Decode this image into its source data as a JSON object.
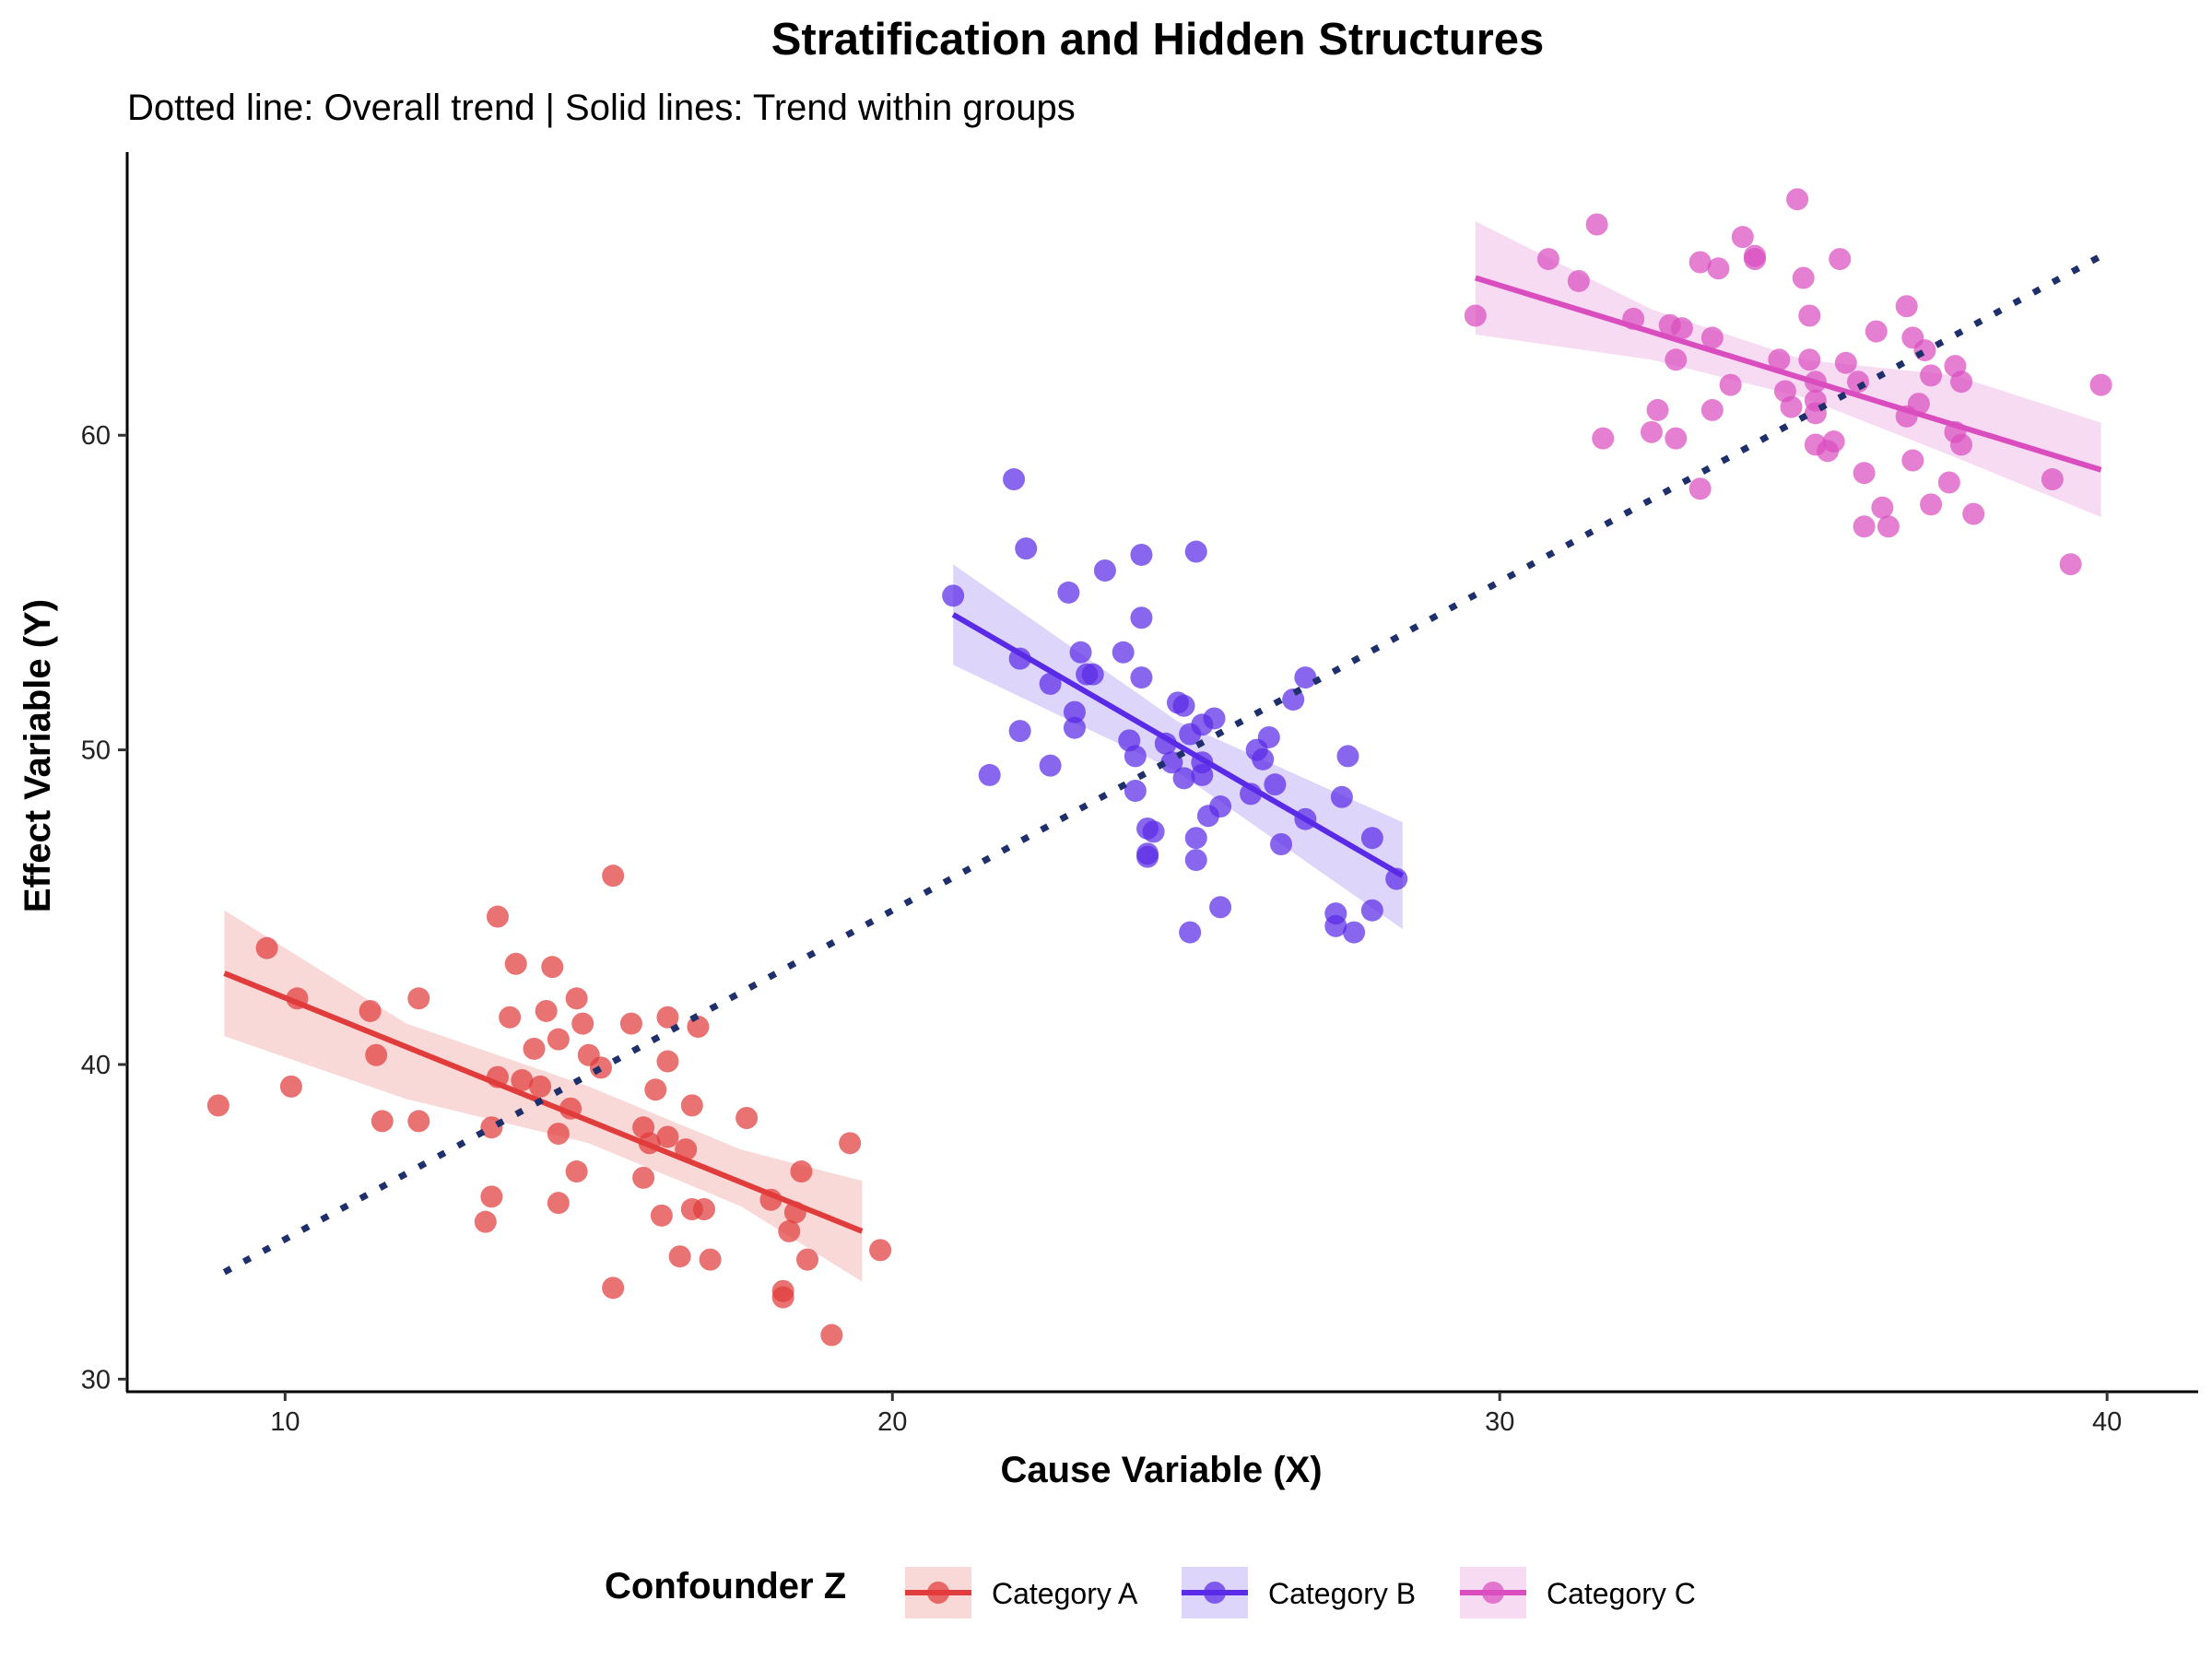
{
  "chart_data": {
    "type": "scatter",
    "title": "Stratification and Hidden Structures",
    "subtitle": "Dotted line: Overall trend | Solid lines: Trend within groups",
    "xlabel": "Cause Variable (X)",
    "ylabel": "Effect Variable (Y)",
    "xlim": [
      7.4,
      41.5
    ],
    "ylim": [
      29.6,
      69.0
    ],
    "xticks": [
      10,
      20,
      30,
      40
    ],
    "yticks": [
      30,
      40,
      50,
      60
    ],
    "grid": false,
    "legend": {
      "title": "Confounder Z",
      "position": "bottom",
      "entries": [
        "Category A",
        "Category B",
        "Category C"
      ]
    },
    "overall_trend": {
      "style": "dotted",
      "color": "#1F2F6B",
      "x": [
        9.0,
        40.0
      ],
      "y": [
        33.4,
        65.8
      ]
    },
    "series": [
      {
        "name": "Category A",
        "color": "#E03C3C",
        "fit": {
          "x": [
            9.0,
            19.5
          ],
          "y": [
            42.9,
            34.7
          ]
        },
        "band": {
          "x": [
            9.0,
            12.0,
            15.0,
            17.5,
            19.5
          ],
          "lower": [
            40.9,
            38.9,
            37.5,
            35.5,
            33.1
          ],
          "upper": [
            44.9,
            41.3,
            39.3,
            37.3,
            36.3
          ]
        },
        "points": [
          [
            8.9,
            38.7
          ],
          [
            9.7,
            43.7
          ],
          [
            10.1,
            39.3
          ],
          [
            10.2,
            42.1
          ],
          [
            11.4,
            41.7
          ],
          [
            11.5,
            40.3
          ],
          [
            11.6,
            38.2
          ],
          [
            12.2,
            42.1
          ],
          [
            12.2,
            38.2
          ],
          [
            13.3,
            35.0
          ],
          [
            13.4,
            38.0
          ],
          [
            13.5,
            39.6
          ],
          [
            13.4,
            35.8
          ],
          [
            13.5,
            44.7
          ],
          [
            13.7,
            41.5
          ],
          [
            13.8,
            43.2
          ],
          [
            13.9,
            39.5
          ],
          [
            14.1,
            40.5
          ],
          [
            14.2,
            39.3
          ],
          [
            14.3,
            41.7
          ],
          [
            14.4,
            43.1
          ],
          [
            14.5,
            40.8
          ],
          [
            14.5,
            35.6
          ],
          [
            14.5,
            37.8
          ],
          [
            14.7,
            38.6
          ],
          [
            14.8,
            36.6
          ],
          [
            14.8,
            42.1
          ],
          [
            14.9,
            41.3
          ],
          [
            15.0,
            40.3
          ],
          [
            15.2,
            39.9
          ],
          [
            15.4,
            32.9
          ],
          [
            15.4,
            46.0
          ],
          [
            15.7,
            41.3
          ],
          [
            15.9,
            36.4
          ],
          [
            15.9,
            38.0
          ],
          [
            16.0,
            37.5
          ],
          [
            16.1,
            39.2
          ],
          [
            16.2,
            35.2
          ],
          [
            16.3,
            37.7
          ],
          [
            16.3,
            41.5
          ],
          [
            16.3,
            40.1
          ],
          [
            16.5,
            33.9
          ],
          [
            16.6,
            37.3
          ],
          [
            16.7,
            35.4
          ],
          [
            16.7,
            38.7
          ],
          [
            16.8,
            41.2
          ],
          [
            16.9,
            35.4
          ],
          [
            17.0,
            33.8
          ],
          [
            17.6,
            38.3
          ],
          [
            18.0,
            35.7
          ],
          [
            18.2,
            32.8
          ],
          [
            18.2,
            32.6
          ],
          [
            18.3,
            34.7
          ],
          [
            18.5,
            36.6
          ],
          [
            18.6,
            33.8
          ],
          [
            18.4,
            35.3
          ],
          [
            19.0,
            31.4
          ],
          [
            19.3,
            37.5
          ],
          [
            19.8,
            34.1
          ]
        ]
      },
      {
        "name": "Category B",
        "color": "#5A2BE6",
        "fit": {
          "x": [
            21.0,
            28.4
          ],
          "y": [
            54.3,
            46.0
          ]
        },
        "band": {
          "x": [
            21.0,
            24.7,
            28.4
          ],
          "lower": [
            52.7,
            49.3,
            44.3
          ],
          "upper": [
            55.9,
            50.9,
            47.7
          ]
        },
        "points": [
          [
            21.0,
            54.9
          ],
          [
            21.6,
            49.2
          ],
          [
            22.0,
            58.6
          ],
          [
            22.1,
            52.9
          ],
          [
            22.1,
            50.6
          ],
          [
            22.2,
            56.4
          ],
          [
            22.6,
            49.5
          ],
          [
            22.6,
            52.1
          ],
          [
            22.9,
            55.0
          ],
          [
            23.0,
            50.7
          ],
          [
            23.0,
            51.2
          ],
          [
            23.1,
            53.1
          ],
          [
            23.2,
            52.4
          ],
          [
            23.3,
            52.4
          ],
          [
            23.5,
            55.7
          ],
          [
            23.8,
            53.1
          ],
          [
            23.9,
            50.3
          ],
          [
            24.0,
            49.8
          ],
          [
            24.0,
            48.7
          ],
          [
            24.1,
            56.2
          ],
          [
            24.1,
            52.3
          ],
          [
            24.1,
            54.2
          ],
          [
            24.2,
            47.5
          ],
          [
            24.2,
            46.7
          ],
          [
            24.2,
            46.6
          ],
          [
            24.3,
            47.4
          ],
          [
            24.5,
            50.2
          ],
          [
            24.6,
            49.6
          ],
          [
            24.7,
            51.5
          ],
          [
            24.8,
            49.1
          ],
          [
            24.8,
            51.4
          ],
          [
            24.9,
            44.2
          ],
          [
            24.9,
            50.5
          ],
          [
            25.0,
            56.3
          ],
          [
            25.0,
            46.5
          ],
          [
            25.0,
            47.2
          ],
          [
            25.1,
            50.8
          ],
          [
            25.1,
            49.6
          ],
          [
            25.1,
            49.2
          ],
          [
            25.2,
            47.9
          ],
          [
            25.3,
            51.0
          ],
          [
            25.4,
            48.2
          ],
          [
            25.4,
            45.0
          ],
          [
            25.9,
            48.6
          ],
          [
            26.0,
            50.0
          ],
          [
            26.1,
            49.7
          ],
          [
            26.2,
            50.4
          ],
          [
            26.3,
            48.9
          ],
          [
            26.4,
            47.0
          ],
          [
            26.6,
            51.6
          ],
          [
            26.8,
            52.3
          ],
          [
            26.8,
            47.8
          ],
          [
            27.3,
            44.8
          ],
          [
            27.3,
            44.4
          ],
          [
            27.4,
            48.5
          ],
          [
            27.5,
            49.8
          ],
          [
            27.6,
            44.2
          ],
          [
            27.9,
            47.2
          ],
          [
            27.9,
            44.9
          ],
          [
            28.3,
            45.9
          ]
        ]
      },
      {
        "name": "Category C",
        "color": "#D94DBF",
        "fit": {
          "x": [
            29.6,
            39.9
          ],
          "y": [
            65.0,
            58.9
          ]
        },
        "band": {
          "x": [
            29.6,
            32.5,
            35.0,
            37.5,
            39.9
          ],
          "lower": [
            63.2,
            62.4,
            61.2,
            59.3,
            57.4
          ],
          "upper": [
            66.8,
            64.0,
            62.4,
            61.9,
            60.4
          ]
        },
        "points": [
          [
            29.6,
            63.8
          ],
          [
            30.8,
            65.6
          ],
          [
            31.3,
            64.9
          ],
          [
            31.6,
            66.7
          ],
          [
            31.7,
            59.9
          ],
          [
            32.2,
            63.7
          ],
          [
            32.5,
            60.1
          ],
          [
            32.6,
            60.8
          ],
          [
            32.8,
            63.5
          ],
          [
            32.9,
            62.4
          ],
          [
            32.9,
            59.9
          ],
          [
            33.0,
            63.4
          ],
          [
            33.3,
            58.3
          ],
          [
            33.3,
            65.5
          ],
          [
            33.5,
            60.8
          ],
          [
            33.5,
            63.1
          ],
          [
            33.6,
            65.3
          ],
          [
            33.8,
            61.6
          ],
          [
            34.0,
            66.3
          ],
          [
            34.2,
            65.7
          ],
          [
            34.2,
            65.6
          ],
          [
            34.6,
            62.4
          ],
          [
            34.7,
            61.4
          ],
          [
            34.8,
            60.9
          ],
          [
            34.9,
            67.5
          ],
          [
            35.0,
            65.0
          ],
          [
            35.1,
            63.8
          ],
          [
            35.1,
            62.4
          ],
          [
            35.2,
            61.7
          ],
          [
            35.2,
            60.7
          ],
          [
            35.2,
            59.7
          ],
          [
            35.2,
            61.1
          ],
          [
            35.4,
            59.5
          ],
          [
            35.5,
            59.8
          ],
          [
            35.6,
            65.6
          ],
          [
            35.7,
            62.3
          ],
          [
            35.9,
            61.7
          ],
          [
            36.0,
            58.8
          ],
          [
            36.0,
            57.1
          ],
          [
            36.2,
            63.3
          ],
          [
            36.3,
            57.7
          ],
          [
            36.4,
            57.1
          ],
          [
            36.7,
            64.1
          ],
          [
            36.7,
            60.6
          ],
          [
            36.8,
            63.1
          ],
          [
            36.8,
            59.2
          ],
          [
            36.9,
            61.0
          ],
          [
            37.0,
            62.7
          ],
          [
            37.1,
            61.9
          ],
          [
            37.1,
            57.8
          ],
          [
            37.4,
            58.5
          ],
          [
            37.5,
            62.2
          ],
          [
            37.5,
            60.1
          ],
          [
            37.6,
            61.7
          ],
          [
            37.6,
            59.7
          ],
          [
            37.8,
            57.5
          ],
          [
            39.1,
            58.6
          ],
          [
            39.4,
            55.9
          ],
          [
            39.9,
            61.6
          ]
        ]
      }
    ]
  }
}
